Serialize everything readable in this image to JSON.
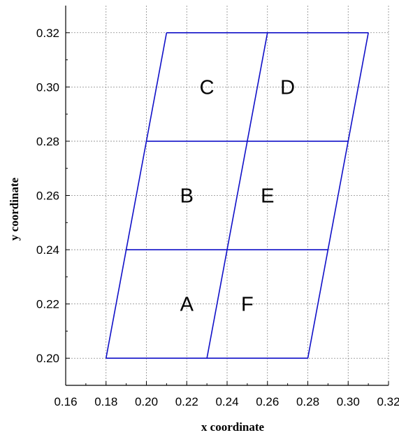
{
  "chart_data": {
    "type": "line",
    "title": "",
    "xlabel": "x coordinate",
    "ylabel": "y coordinate",
    "xlim": [
      0.16,
      0.32
    ],
    "ylim": [
      0.19,
      0.33
    ],
    "grid": true,
    "line_color": "#1010c8",
    "x_ticks": [
      0.16,
      0.18,
      0.2,
      0.22,
      0.24,
      0.26,
      0.28,
      0.3,
      0.32
    ],
    "x_tick_labels": [
      "0.16",
      "0.18",
      "0.20",
      "0.22",
      "0.24",
      "0.26",
      "0.28",
      "0.30",
      "0.32"
    ],
    "y_ticks": [
      0.2,
      0.22,
      0.24,
      0.26,
      0.28,
      0.3,
      0.32
    ],
    "y_tick_labels": [
      "0.20",
      "0.22",
      "0.24",
      "0.26",
      "0.28",
      "0.30",
      "0.32"
    ],
    "segments": [
      {
        "x": [
          0.18,
          0.28
        ],
        "y": [
          0.2,
          0.2
        ]
      },
      {
        "x": [
          0.19,
          0.29
        ],
        "y": [
          0.24,
          0.24
        ]
      },
      {
        "x": [
          0.2,
          0.3
        ],
        "y": [
          0.28,
          0.28
        ]
      },
      {
        "x": [
          0.21,
          0.31
        ],
        "y": [
          0.32,
          0.32
        ]
      },
      {
        "x": [
          0.18,
          0.21
        ],
        "y": [
          0.2,
          0.32
        ]
      },
      {
        "x": [
          0.23,
          0.26
        ],
        "y": [
          0.2,
          0.32
        ]
      },
      {
        "x": [
          0.28,
          0.31
        ],
        "y": [
          0.2,
          0.32
        ]
      }
    ],
    "region_labels": [
      {
        "text": "A",
        "x": 0.22,
        "y": 0.22
      },
      {
        "text": "B",
        "x": 0.22,
        "y": 0.26
      },
      {
        "text": "C",
        "x": 0.23,
        "y": 0.3
      },
      {
        "text": "D",
        "x": 0.27,
        "y": 0.3
      },
      {
        "text": "E",
        "x": 0.26,
        "y": 0.26
      },
      {
        "text": "F",
        "x": 0.25,
        "y": 0.22
      }
    ]
  }
}
